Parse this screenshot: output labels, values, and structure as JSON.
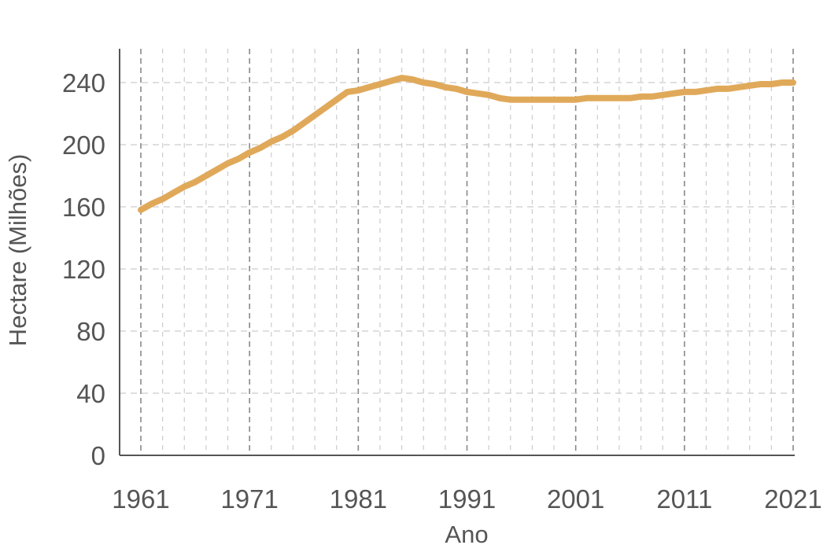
{
  "chart_data": {
    "type": "line",
    "title": "",
    "xlabel": "Ano",
    "ylabel": "Hectare (Milhões)",
    "xlim": [
      1961,
      2021
    ],
    "ylim": [
      0,
      240
    ],
    "x_ticks": [
      1961,
      1971,
      1981,
      1991,
      2001,
      2011,
      2021
    ],
    "x_tick_labels": [
      "1961",
      "1971",
      "1981",
      "1991",
      "2001",
      "2011",
      "2021"
    ],
    "y_ticks": [
      0,
      40,
      80,
      120,
      160,
      200,
      240
    ],
    "y_tick_labels": [
      "0",
      "40",
      "80",
      "120",
      "160",
      "200",
      "240"
    ],
    "grid": true,
    "colors": {
      "series": "#e0a95a",
      "grid": "#cccccc",
      "axis": "#555555",
      "text": "#555555"
    },
    "series": [
      {
        "x": [
          1961,
          1962,
          1963,
          1964,
          1965,
          1966,
          1967,
          1968,
          1969,
          1970,
          1971,
          1972,
          1973,
          1974,
          1975,
          1976,
          1977,
          1978,
          1979,
          1980,
          1981,
          1982,
          1983,
          1984,
          1985,
          1986,
          1987,
          1988,
          1989,
          1990,
          1991,
          1992,
          1993,
          1994,
          1995,
          1996,
          1997,
          1998,
          1999,
          2000,
          2001,
          2002,
          2003,
          2004,
          2005,
          2006,
          2007,
          2008,
          2009,
          2010,
          2011,
          2012,
          2013,
          2014,
          2015,
          2016,
          2017,
          2018,
          2019,
          2020,
          2021
        ],
        "values": [
          158,
          162,
          165,
          169,
          173,
          176,
          180,
          184,
          188,
          191,
          195,
          198,
          202,
          205,
          209,
          214,
          219,
          224,
          229,
          234,
          235,
          237,
          239,
          241,
          243,
          242,
          240,
          239,
          237,
          236,
          234,
          233,
          232,
          230,
          229,
          229,
          229,
          229,
          229,
          229,
          229,
          230,
          230,
          230,
          230,
          230,
          231,
          231,
          232,
          233,
          234,
          234,
          235,
          236,
          236,
          237,
          238,
          239,
          239,
          240,
          240
        ]
      }
    ]
  }
}
